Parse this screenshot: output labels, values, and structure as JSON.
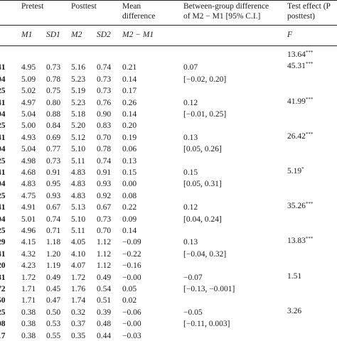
{
  "headers": {
    "pretest": "Pretest",
    "posttest": "Posttest",
    "mean_diff_1": "Mean",
    "mean_diff_2": "difference",
    "between_1": "Between-group difference",
    "between_2": "of M2 − M1 [95% C.I.]",
    "test_1": "Test effect (P",
    "test_2": "posttest)"
  },
  "subheaders": {
    "m1": "M1",
    "sd1": "SD1",
    "m2": "M2",
    "sd2": "SD2",
    "m2m1": "M2 − M1",
    "f": "F"
  },
  "rows": [
    {
      "lab": "",
      "m1": "",
      "sd1": "",
      "m2": "",
      "sd2": "",
      "md": "",
      "bg": "",
      "f": "13.64",
      "sig": "***"
    },
    {
      "lab": "41",
      "m1": "4.95",
      "sd1": "0.73",
      "m2": "5.16",
      "sd2": "0.74",
      "md": "0.21",
      "bg": "0.07",
      "f": "45.31",
      "sig": "***"
    },
    {
      "lab": "04",
      "m1": "5.09",
      "sd1": "0.78",
      "m2": "5.23",
      "sd2": "0.73",
      "md": "0.14",
      "bg": "[−0.02, 0.20]",
      "f": "",
      "sig": ""
    },
    {
      "lab": "25",
      "m1": "5.02",
      "sd1": "0.75",
      "m2": "5.19",
      "sd2": "0.73",
      "md": "0.17",
      "bg": "",
      "f": "",
      "sig": ""
    },
    {
      "lab": "41",
      "m1": "4.97",
      "sd1": "0.80",
      "m2": "5.23",
      "sd2": "0.76",
      "md": "0.26",
      "bg": "0.12",
      "f": "41.99",
      "sig": "***"
    },
    {
      "lab": "04",
      "m1": "5.04",
      "sd1": "0.88",
      "m2": "5.18",
      "sd2": "0.90",
      "md": "0.14",
      "bg": "[−0.01, 0.25]",
      "f": "",
      "sig": ""
    },
    {
      "lab": "25",
      "m1": "5.00",
      "sd1": "0.84",
      "m2": "5.20",
      "sd2": "0.83",
      "md": "0.20",
      "bg": "",
      "f": "",
      "sig": ""
    },
    {
      "lab": "41",
      "m1": "4.93",
      "sd1": "0.69",
      "m2": "5.12",
      "sd2": "0.70",
      "md": "0.19",
      "bg": "0.13",
      "f": "26.42",
      "sig": "***"
    },
    {
      "lab": "04",
      "m1": "5.04",
      "sd1": "0.77",
      "m2": "5.10",
      "sd2": "0.78",
      "md": "0.06",
      "bg": "[0.05, 0.26]",
      "f": "",
      "sig": ""
    },
    {
      "lab": "25",
      "m1": "4.98",
      "sd1": "0.73",
      "m2": "5.11",
      "sd2": "0.74",
      "md": "0.13",
      "bg": "",
      "f": "",
      "sig": ""
    },
    {
      "lab": "41",
      "m1": "4.68",
      "sd1": "0.91",
      "m2": "4.83",
      "sd2": "0.91",
      "md": "0.15",
      "bg": "0.15",
      "f": "5.19",
      "sig": "*"
    },
    {
      "lab": "04",
      "m1": "4.83",
      "sd1": "0.95",
      "m2": "4.83",
      "sd2": "0.93",
      "md": "0.00",
      "bg": "[0.05, 0.31]",
      "f": "",
      "sig": ""
    },
    {
      "lab": "25",
      "m1": "4.75",
      "sd1": "0.93",
      "m2": "4.83",
      "sd2": "0.92",
      "md": "0.08",
      "bg": "",
      "f": "",
      "sig": ""
    },
    {
      "lab": "41",
      "m1": "4.91",
      "sd1": "0.67",
      "m2": "5.13",
      "sd2": "0.67",
      "md": "0.22",
      "bg": "0.12",
      "f": "35.26",
      "sig": "***"
    },
    {
      "lab": "04",
      "m1": "5.01",
      "sd1": "0.74",
      "m2": "5.10",
      "sd2": "0.73",
      "md": "0.09",
      "bg": "[0.04, 0.24]",
      "f": "",
      "sig": ""
    },
    {
      "lab": "25",
      "m1": "4.96",
      "sd1": "0.71",
      "m2": "5.11",
      "sd2": "0.70",
      "md": "0.14",
      "bg": "",
      "f": "",
      "sig": ""
    },
    {
      "lab": "29",
      "m1": "4.15",
      "sd1": "1.18",
      "m2": "4.05",
      "sd2": "1.12",
      "md": "−0.09",
      "bg": "0.13",
      "f": "13.83",
      "sig": "***"
    },
    {
      "lab": "41",
      "m1": "4.32",
      "sd1": "1.20",
      "m2": "4.10",
      "sd2": "1.12",
      "md": "−0.22",
      "bg": "[−0.04, 0.32]",
      "f": "",
      "sig": ""
    },
    {
      "lab": "20",
      "m1": "4.23",
      "sd1": "1.19",
      "m2": "4.07",
      "sd2": "1.12",
      "md": "−0.16",
      "bg": "",
      "f": "",
      "sig": ""
    },
    {
      "lab": "81",
      "m1": "1.72",
      "sd1": "0.49",
      "m2": "1.72",
      "sd2": "0.49",
      "md": "−0.00",
      "bg": "−0.07",
      "f": "1.51",
      "sig": ""
    },
    {
      "lab": "72",
      "m1": "1.71",
      "sd1": "0.45",
      "m2": "1.76",
      "sd2": "0.54",
      "md": "0.05",
      "bg": "[−0.13, −0.001]",
      "f": "",
      "sig": ""
    },
    {
      "lab": "50",
      "m1": "1.71",
      "sd1": "0.47",
      "m2": "1.74",
      "sd2": "0.51",
      "md": "0.02",
      "bg": "",
      "f": "",
      "sig": ""
    },
    {
      "lab": "25",
      "m1": "0.38",
      "sd1": "0.50",
      "m2": "0.32",
      "sd2": "0.39",
      "md": "−0.06",
      "bg": "−0.05",
      "f": "3.26",
      "sig": ""
    },
    {
      "lab": "08",
      "m1": "0.38",
      "sd1": "0.53",
      "m2": "0.37",
      "sd2": "0.48",
      "md": "−0.00",
      "bg": "[−0.11, 0.003]",
      "f": "",
      "sig": ""
    },
    {
      "lab": "17",
      "m1": "0.38",
      "sd1": "0.55",
      "m2": "0.35",
      "sd2": "0.44",
      "md": "−0.03",
      "bg": "",
      "f": "",
      "sig": ""
    }
  ]
}
